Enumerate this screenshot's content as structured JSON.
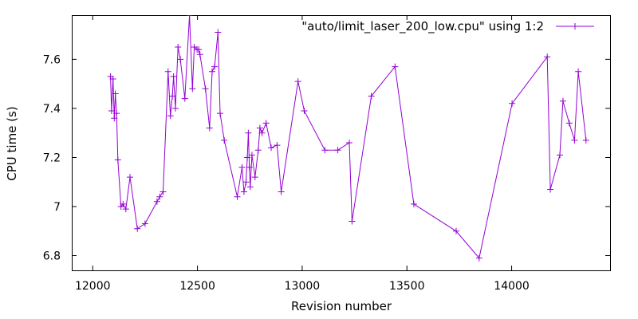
{
  "colors": {
    "series": "#9400d3",
    "axis": "#000000",
    "background": "#ffffff"
  },
  "chart_data": {
    "type": "line",
    "xlabel": "Revision number",
    "ylabel": "CPU time (s)",
    "xlim": [
      11900,
      14470
    ],
    "ylim": [
      6.74,
      7.78
    ],
    "xticks": [
      12000,
      12500,
      13000,
      13500,
      14000
    ],
    "xtick_labels": [
      "12000",
      "12500",
      "13000",
      "13500",
      "14000"
    ],
    "yticks": [
      6.8,
      7.0,
      7.2,
      7.4,
      7.6
    ],
    "ytick_labels": [
      "6.8",
      "7",
      "7.2",
      "7.4",
      "7.6"
    ],
    "grid": false,
    "legend_position": "top-right",
    "marker": "plus",
    "series": [
      {
        "name": "\"auto/limit_laser_200_low.cpu\" using 1:2",
        "x": [
          12085,
          12090,
          12097,
          12103,
          12108,
          12114,
          12120,
          12135,
          12145,
          12158,
          12178,
          12213,
          12250,
          12307,
          12320,
          12336,
          12360,
          12371,
          12380,
          12386,
          12395,
          12407,
          12418,
          12440,
          12462,
          12476,
          12485,
          12498,
          12506,
          12512,
          12538,
          12558,
          12570,
          12582,
          12598,
          12608,
          12628,
          12690,
          12713,
          12722,
          12732,
          12738,
          12743,
          12748,
          12752,
          12760,
          12775,
          12790,
          12798,
          12808,
          12828,
          12852,
          12880,
          12900,
          12980,
          13010,
          13108,
          13170,
          13225,
          13238,
          13330,
          13443,
          13533,
          13735,
          13845,
          14002,
          14170,
          14185,
          14230,
          14245,
          14275,
          14300,
          14318,
          14355
        ],
        "y": [
          7.53,
          7.39,
          7.52,
          7.36,
          7.46,
          7.38,
          7.19,
          7.0,
          7.01,
          6.99,
          7.12,
          6.91,
          6.93,
          7.02,
          7.04,
          7.06,
          7.55,
          7.37,
          7.45,
          7.53,
          7.4,
          7.65,
          7.6,
          7.44,
          7.78,
          7.48,
          7.65,
          7.64,
          7.64,
          7.62,
          7.48,
          7.32,
          7.55,
          7.57,
          7.71,
          7.38,
          7.27,
          7.04,
          7.16,
          7.06,
          7.1,
          7.2,
          7.3,
          7.16,
          7.08,
          7.21,
          7.12,
          7.23,
          7.32,
          7.3,
          7.34,
          7.24,
          7.25,
          7.06,
          7.51,
          7.39,
          7.23,
          7.23,
          7.26,
          6.94,
          7.45,
          7.57,
          7.01,
          6.9,
          6.79,
          7.42,
          7.61,
          7.07,
          7.21,
          7.43,
          7.34,
          7.27,
          7.55,
          7.27
        ]
      }
    ]
  }
}
